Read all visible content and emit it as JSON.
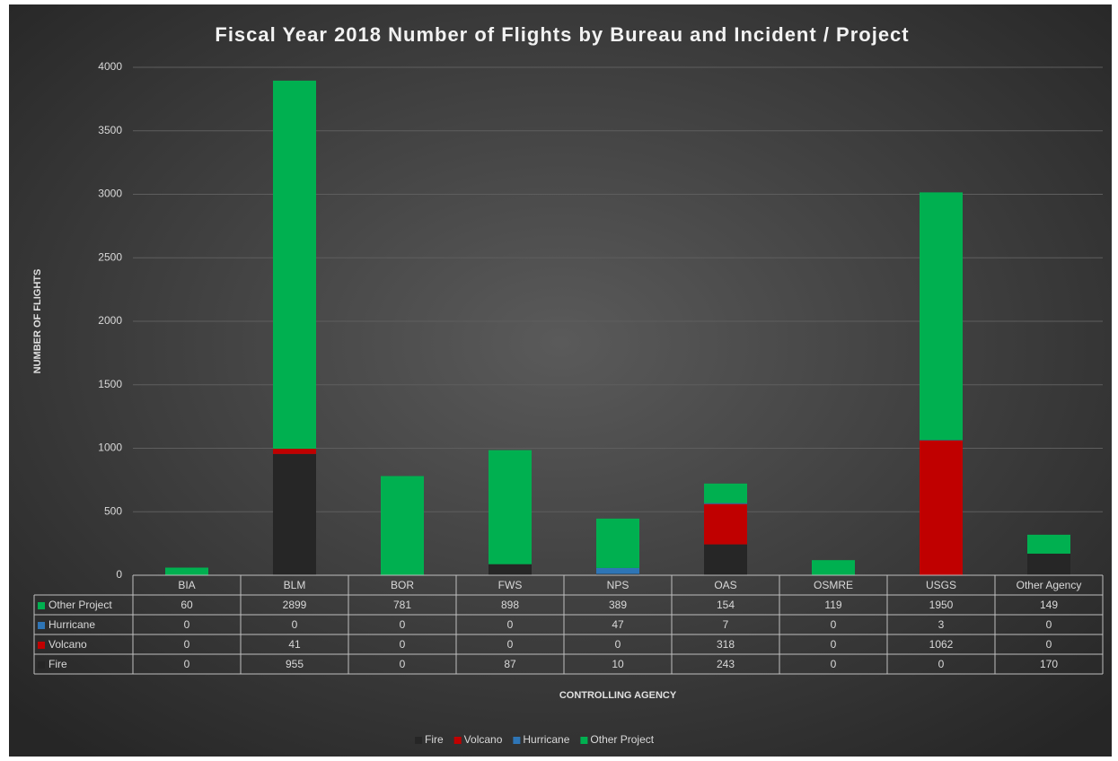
{
  "chart_data": {
    "type": "stacked_bar",
    "title": "Fiscal Year 2018 Number of Flights by Bureau and Incident / Project",
    "y_label": "NUMBER OF FLIGHTS",
    "x_label": "CONTROLLING AGENCY",
    "categories": [
      "BIA",
      "BLM",
      "BOR",
      "FWS",
      "NPS",
      "OAS",
      "OSMRE",
      "USGS",
      "Other Agency"
    ],
    "series": [
      {
        "name": "Fire",
        "color": "#262626",
        "values": [
          0,
          955,
          0,
          87,
          10,
          243,
          0,
          0,
          170
        ]
      },
      {
        "name": "Volcano",
        "color": "#c00000",
        "values": [
          0,
          41,
          0,
          0,
          0,
          318,
          0,
          1062,
          0
        ]
      },
      {
        "name": "Hurricane",
        "color": "#2e75b6",
        "values": [
          0,
          0,
          0,
          0,
          47,
          7,
          0,
          3,
          0
        ]
      },
      {
        "name": "Other Project",
        "color": "#00b050",
        "values": [
          60,
          2899,
          781,
          898,
          389,
          154,
          119,
          1950,
          149
        ]
      }
    ],
    "ylim": [
      0,
      4000
    ],
    "yticks": [
      0,
      500,
      1000,
      1500,
      2000,
      2500,
      3000,
      3500,
      4000
    ],
    "grid": true,
    "legend": "bottom"
  }
}
